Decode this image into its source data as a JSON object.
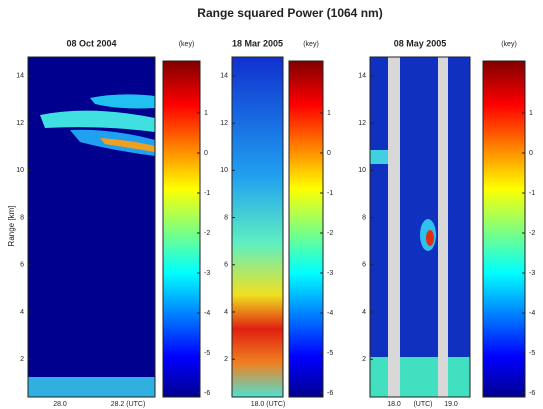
{
  "title": "Range squared Power   (1064 nm)",
  "y_axis": {
    "label": "Range [km]",
    "ylim": [
      0.4,
      14.8
    ],
    "yticks": [
      2,
      4,
      6,
      8,
      10,
      12,
      14
    ]
  },
  "panels": [
    {
      "title": "08 Oct 2004",
      "colorbar_label": "(key)",
      "clim": [
        -6.1,
        2.3
      ],
      "cticks": [
        1,
        0,
        -1,
        -2,
        -3,
        -4,
        -5,
        -6
      ],
      "x_labels": [
        "28.0",
        "28.2 (UTC)"
      ]
    },
    {
      "title": "18 Mar 2005",
      "colorbar_label": "(key)",
      "clim": [
        -6.1,
        2.3
      ],
      "cticks": [
        1,
        0,
        -1,
        -2,
        -3,
        -4,
        -5,
        -6
      ],
      "x_labels": [
        "18.0 (UTC)"
      ]
    },
    {
      "title": "08 May 2005",
      "colorbar_label": "(key)",
      "clim": [
        -6.1,
        2.3
      ],
      "cticks": [
        1,
        0,
        -1,
        -2,
        -3,
        -4,
        -5,
        -6
      ],
      "x_labels": [
        "18.0",
        "(UTC)",
        "19.0"
      ]
    }
  ]
}
